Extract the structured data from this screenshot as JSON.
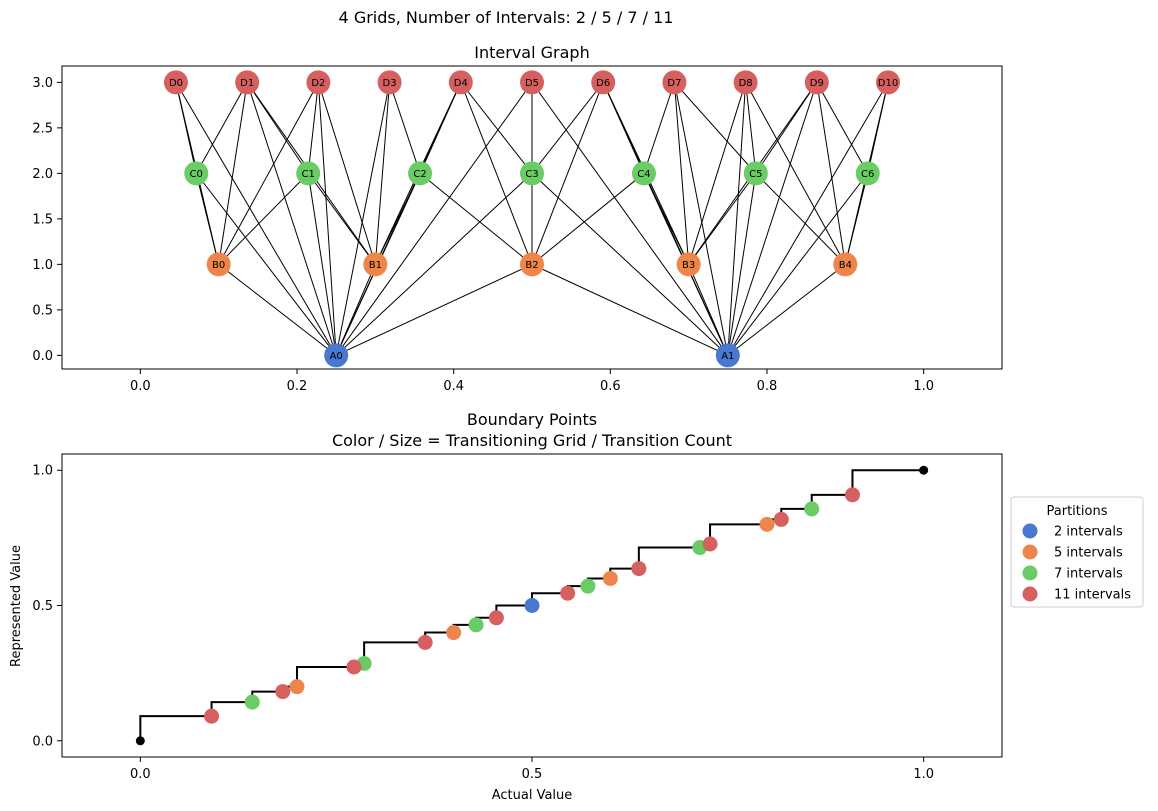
{
  "suptitle": "4 Grids, Number of Intervals: 2 / 5 / 7 / 11",
  "chart_data": [
    {
      "type": "network",
      "title": "Interval Graph",
      "xlim": [
        -0.1,
        1.1
      ],
      "ylim": [
        -0.15,
        3.18
      ],
      "xticks": [
        0.0,
        0.2,
        0.4,
        0.6,
        0.8,
        1.0
      ],
      "xtick_labels": [
        "0.0",
        "0.2",
        "0.4",
        "0.6",
        "0.8",
        "1.0"
      ],
      "yticks": [
        0.0,
        0.5,
        1.0,
        1.5,
        2.0,
        2.5,
        3.0
      ],
      "ytick_labels": [
        "0.0",
        "0.5",
        "1.0",
        "1.5",
        "2.0",
        "2.5",
        "3.0"
      ],
      "colors": {
        "A": "#4878d0",
        "B": "#ee854a",
        "C": "#6acc64",
        "D": "#d65f5f"
      },
      "nodes": [
        {
          "id": "A0",
          "label": "A0",
          "x": 0.25,
          "y": 0
        },
        {
          "id": "A1",
          "label": "A1",
          "x": 0.75,
          "y": 0
        },
        {
          "id": "B0",
          "label": "B0",
          "x": 0.1,
          "y": 1
        },
        {
          "id": "B1",
          "label": "B1",
          "x": 0.3,
          "y": 1
        },
        {
          "id": "B2",
          "label": "B2",
          "x": 0.5,
          "y": 1
        },
        {
          "id": "B3",
          "label": "B3",
          "x": 0.7,
          "y": 1
        },
        {
          "id": "B4",
          "label": "B4",
          "x": 0.9,
          "y": 1
        },
        {
          "id": "C0",
          "label": "C0",
          "x": 0.0714,
          "y": 2
        },
        {
          "id": "C1",
          "label": "C1",
          "x": 0.2143,
          "y": 2
        },
        {
          "id": "C2",
          "label": "C2",
          "x": 0.3571,
          "y": 2
        },
        {
          "id": "C3",
          "label": "C3",
          "x": 0.5,
          "y": 2
        },
        {
          "id": "C4",
          "label": "C4",
          "x": 0.6429,
          "y": 2
        },
        {
          "id": "C5",
          "label": "C5",
          "x": 0.7857,
          "y": 2
        },
        {
          "id": "C6",
          "label": "C6",
          "x": 0.9286,
          "y": 2
        },
        {
          "id": "D0",
          "label": "D0",
          "x": 0.0455,
          "y": 3
        },
        {
          "id": "D1",
          "label": "D1",
          "x": 0.1364,
          "y": 3
        },
        {
          "id": "D2",
          "label": "D2",
          "x": 0.2273,
          "y": 3
        },
        {
          "id": "D3",
          "label": "D3",
          "x": 0.3182,
          "y": 3
        },
        {
          "id": "D4",
          "label": "D4",
          "x": 0.4091,
          "y": 3
        },
        {
          "id": "D5",
          "label": "D5",
          "x": 0.5,
          "y": 3
        },
        {
          "id": "D6",
          "label": "D6",
          "x": 0.5909,
          "y": 3
        },
        {
          "id": "D7",
          "label": "D7",
          "x": 0.6818,
          "y": 3
        },
        {
          "id": "D8",
          "label": "D8",
          "x": 0.7727,
          "y": 3
        },
        {
          "id": "D9",
          "label": "D9",
          "x": 0.8636,
          "y": 3
        },
        {
          "id": "D10",
          "label": "D10",
          "x": 0.9545,
          "y": 3
        }
      ],
      "edges": [
        [
          "A0",
          "B0"
        ],
        [
          "A0",
          "B1"
        ],
        [
          "A0",
          "B2"
        ],
        [
          "A0",
          "C0"
        ],
        [
          "A0",
          "C1"
        ],
        [
          "A0",
          "C2"
        ],
        [
          "A0",
          "C3"
        ],
        [
          "A0",
          "D0"
        ],
        [
          "A0",
          "D1"
        ],
        [
          "A0",
          "D2"
        ],
        [
          "A0",
          "D3"
        ],
        [
          "A0",
          "D4"
        ],
        [
          "A0",
          "D5"
        ],
        [
          "A1",
          "B2"
        ],
        [
          "A1",
          "B3"
        ],
        [
          "A1",
          "B4"
        ],
        [
          "A1",
          "C3"
        ],
        [
          "A1",
          "C4"
        ],
        [
          "A1",
          "C5"
        ],
        [
          "A1",
          "C6"
        ],
        [
          "A1",
          "D5"
        ],
        [
          "A1",
          "D6"
        ],
        [
          "A1",
          "D7"
        ],
        [
          "A1",
          "D8"
        ],
        [
          "A1",
          "D9"
        ],
        [
          "A1",
          "D10"
        ],
        [
          "B0",
          "C0"
        ],
        [
          "B0",
          "C1"
        ],
        [
          "B1",
          "C1"
        ],
        [
          "B1",
          "C2"
        ],
        [
          "B2",
          "C2"
        ],
        [
          "B2",
          "C3"
        ],
        [
          "B2",
          "C4"
        ],
        [
          "B3",
          "C4"
        ],
        [
          "B3",
          "C5"
        ],
        [
          "B4",
          "C5"
        ],
        [
          "B4",
          "C6"
        ],
        [
          "B0",
          "D0"
        ],
        [
          "B0",
          "D1"
        ],
        [
          "B0",
          "D2"
        ],
        [
          "B1",
          "D1"
        ],
        [
          "B1",
          "D2"
        ],
        [
          "B1",
          "D3"
        ],
        [
          "B1",
          "D4"
        ],
        [
          "B2",
          "D4"
        ],
        [
          "B2",
          "D5"
        ],
        [
          "B2",
          "D6"
        ],
        [
          "B3",
          "D6"
        ],
        [
          "B3",
          "D7"
        ],
        [
          "B3",
          "D8"
        ],
        [
          "B3",
          "D9"
        ],
        [
          "B4",
          "D8"
        ],
        [
          "B4",
          "D9"
        ],
        [
          "B4",
          "D10"
        ],
        [
          "C0",
          "D0"
        ],
        [
          "C0",
          "D1"
        ],
        [
          "C1",
          "D1"
        ],
        [
          "C1",
          "D2"
        ],
        [
          "C2",
          "D3"
        ],
        [
          "C2",
          "D4"
        ],
        [
          "C3",
          "D5"
        ],
        [
          "C3",
          "D6"
        ],
        [
          "C3",
          "D4"
        ],
        [
          "C4",
          "D6"
        ],
        [
          "C4",
          "D7"
        ],
        [
          "C5",
          "D7"
        ],
        [
          "C5",
          "D8"
        ],
        [
          "C5",
          "D9"
        ],
        [
          "C6",
          "D9"
        ],
        [
          "C6",
          "D10"
        ]
      ]
    },
    {
      "type": "step",
      "title": "Boundary Points",
      "subtitle": "Color / Size = Transitioning Grid / Transition Count",
      "xlabel": "Actual Value",
      "ylabel": "Represented Value",
      "xlim": [
        -0.1,
        1.1
      ],
      "ylim": [
        -0.06,
        1.06
      ],
      "xticks": [
        0.0,
        0.5,
        1.0
      ],
      "xtick_labels": [
        "0.0",
        "0.5",
        "1.0"
      ],
      "yticks": [
        0.0,
        0.5,
        1.0
      ],
      "ytick_labels": [
        "0.0",
        "0.5",
        "1.0"
      ],
      "legend_title": "Partitions",
      "legend_position": "right-outside",
      "series": [
        {
          "name": "2 intervals",
          "color": "#4878d0",
          "x": [
            0.5
          ],
          "y": [
            0.5
          ]
        },
        {
          "name": "5 intervals",
          "color": "#ee854a",
          "x": [
            0.2,
            0.4,
            0.6,
            0.8
          ],
          "y": [
            0.2,
            0.4,
            0.6,
            0.8
          ]
        },
        {
          "name": "7 intervals",
          "color": "#6acc64",
          "x": [
            0.1429,
            0.2857,
            0.4286,
            0.5714,
            0.7143,
            0.8571
          ],
          "y": [
            0.1429,
            0.2857,
            0.4286,
            0.5714,
            0.7143,
            0.8571
          ]
        },
        {
          "name": "11 intervals",
          "color": "#d65f5f",
          "x": [
            0.0909,
            0.1818,
            0.2727,
            0.3636,
            0.4545,
            0.5455,
            0.6364,
            0.7273,
            0.8182,
            0.9091
          ],
          "y": [
            0.0909,
            0.1818,
            0.2727,
            0.3636,
            0.4545,
            0.5455,
            0.6364,
            0.7273,
            0.8182,
            0.9091
          ]
        }
      ],
      "endpoints": {
        "color": "#000000",
        "x": [
          0.0,
          1.0
        ],
        "y": [
          0.0,
          1.0
        ]
      }
    }
  ]
}
